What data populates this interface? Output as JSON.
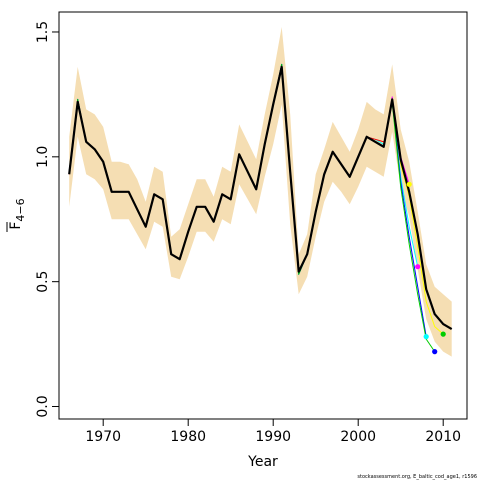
{
  "chart_data": {
    "type": "line",
    "xlabel": "Year",
    "ylabel": {
      "base": "F",
      "subscript": "4−6"
    },
    "xlim": [
      1964.8,
      2012.8
    ],
    "ylim": [
      -0.05,
      1.58
    ],
    "x_ticks": [
      1970,
      1980,
      1990,
      2000,
      2010
    ],
    "x_tick_labels": [
      "1970",
      "1980",
      "1990",
      "2000",
      "2010"
    ],
    "y_ticks": [
      0.0,
      0.5,
      1.0,
      1.5
    ],
    "y_tick_labels": [
      "0.0",
      "0.5",
      "1.0",
      "1.5"
    ],
    "footer": "stockassessment.org, E_baltic_cod_age1, r1596",
    "colors": {
      "band": "#f5deb3",
      "main_line": "#000000",
      "retro": [
        "#ffff00",
        "#ff00ff",
        "#00ffff",
        "#0000ff",
        "#00cc00",
        "#ff0000"
      ]
    },
    "band": {
      "x": [
        1966,
        1967,
        1968,
        1969,
        1970,
        1971,
        1972,
        1973,
        1974,
        1975,
        1976,
        1977,
        1978,
        1979,
        1980,
        1981,
        1982,
        1983,
        1984,
        1985,
        1986,
        1987,
        1988,
        1989,
        1990,
        1991,
        1992,
        1993,
        1994,
        1995,
        1996,
        1997,
        1998,
        1999,
        2000,
        2001,
        2002,
        2003,
        2004,
        2005,
        2006,
        2007,
        2008,
        2009,
        2010,
        2011
      ],
      "lower": [
        0.8,
        1.08,
        0.93,
        0.91,
        0.87,
        0.75,
        0.75,
        0.75,
        0.69,
        0.63,
        0.74,
        0.72,
        0.52,
        0.51,
        0.6,
        0.7,
        0.7,
        0.66,
        0.75,
        0.73,
        0.89,
        0.83,
        0.77,
        0.92,
        1.05,
        1.21,
        0.73,
        0.45,
        0.52,
        0.68,
        0.82,
        0.9,
        0.86,
        0.81,
        0.88,
        0.96,
        0.94,
        0.92,
        1.1,
        0.88,
        0.76,
        0.55,
        0.35,
        0.26,
        0.22,
        0.2
      ],
      "upper": [
        1.08,
        1.36,
        1.19,
        1.17,
        1.12,
        0.98,
        0.98,
        0.97,
        0.91,
        0.82,
        0.96,
        0.94,
        0.68,
        0.71,
        0.81,
        0.91,
        0.91,
        0.84,
        0.96,
        0.94,
        1.13,
        1.06,
        0.99,
        1.17,
        1.33,
        1.52,
        1.17,
        0.61,
        0.69,
        0.93,
        1.03,
        1.14,
        1.08,
        1.02,
        1.11,
        1.22,
        1.19,
        1.17,
        1.37,
        1.11,
        0.98,
        0.78,
        0.57,
        0.48,
        0.45,
        0.42
      ]
    },
    "series": [
      {
        "x": [
          1966,
          1967,
          1968,
          1969,
          1970,
          1971,
          1972,
          1973,
          1974,
          1975,
          1976,
          1977,
          1978,
          1979,
          1980,
          1981,
          1982,
          1983,
          1984,
          1985,
          1986,
          1987,
          1988,
          1989,
          1990,
          1991,
          1992,
          1993,
          1994,
          1995,
          1996,
          1997,
          1998,
          1999,
          2000,
          2001,
          2002,
          2003,
          2004,
          2005,
          2006,
          2007,
          2008,
          2009,
          2010,
          2011
        ],
        "values": [
          0.93,
          1.22,
          1.06,
          1.03,
          0.98,
          0.86,
          0.86,
          0.86,
          0.79,
          0.72,
          0.85,
          0.83,
          0.61,
          0.59,
          0.7,
          0.8,
          0.8,
          0.74,
          0.85,
          0.83,
          1.01,
          0.94,
          0.87,
          1.05,
          1.21,
          1.36,
          0.94,
          0.54,
          0.61,
          0.78,
          0.93,
          1.02,
          0.97,
          0.92,
          1.0,
          1.08,
          1.06,
          1.04,
          1.23,
          0.99,
          0.86,
          0.69,
          0.47,
          0.37,
          0.33,
          0.31
        ]
      },
      {
        "x": [
          1966,
          1967,
          1968,
          1969,
          1970,
          1971,
          1972,
          1973,
          1974,
          1975,
          1976,
          1977,
          1978,
          1979,
          1980,
          1981,
          1982,
          1983,
          1984,
          1985,
          1986,
          1987,
          1988,
          1989,
          1990,
          1991,
          1992,
          1993,
          1994,
          1995,
          1996,
          1997,
          1998,
          1999,
          2000,
          2001,
          2002,
          2003,
          2004,
          2005,
          2006,
          2007,
          2008,
          2009,
          2010
        ],
        "values": [
          0.94,
          1.22,
          1.06,
          1.03,
          0.98,
          0.86,
          0.86,
          0.86,
          0.79,
          0.72,
          0.85,
          0.83,
          0.61,
          0.59,
          0.7,
          0.8,
          0.8,
          0.74,
          0.85,
          0.83,
          1.01,
          0.94,
          0.87,
          1.05,
          1.21,
          1.36,
          0.94,
          0.53,
          0.61,
          0.78,
          0.93,
          1.02,
          0.97,
          0.92,
          1.0,
          1.08,
          1.06,
          1.04,
          1.23,
          0.97,
          0.84,
          0.64,
          0.42,
          0.32,
          0.29
        ]
      },
      {
        "x": [
          1966,
          1967,
          1968,
          1969,
          1970,
          1971,
          1972,
          1973,
          1974,
          1975,
          1976,
          1977,
          1978,
          1979,
          1980,
          1981,
          1982,
          1983,
          1984,
          1985,
          1986,
          1987,
          1988,
          1989,
          1990,
          1991,
          1992,
          1993,
          1994,
          1995,
          1996,
          1997,
          1998,
          1999,
          2000,
          2001,
          2002,
          2003,
          2004,
          2005,
          2006
        ],
        "values": [
          0.94,
          1.23,
          1.06,
          1.03,
          0.98,
          0.86,
          0.86,
          0.86,
          0.79,
          0.72,
          0.85,
          0.83,
          0.61,
          0.59,
          0.7,
          0.8,
          0.8,
          0.74,
          0.85,
          0.83,
          1.01,
          0.94,
          0.87,
          1.05,
          1.21,
          1.37,
          0.94,
          0.53,
          0.61,
          0.78,
          0.93,
          1.02,
          0.97,
          0.92,
          1.0,
          1.08,
          1.06,
          1.04,
          1.24,
          1.0,
          0.89
        ]
      },
      {
        "x": [
          1966,
          1967,
          1968,
          1969,
          1970,
          1971,
          1972,
          1973,
          1974,
          1975,
          1976,
          1977,
          1978,
          1979,
          1980,
          1981,
          1982,
          1983,
          1984,
          1985,
          1986,
          1987,
          1988,
          1989,
          1990,
          1991,
          1992,
          1993,
          1994,
          1995,
          1996,
          1997,
          1998,
          1999,
          2000,
          2001,
          2002,
          2003,
          2004,
          2005,
          2006,
          2007
        ],
        "values": [
          0.94,
          1.23,
          1.06,
          1.03,
          0.98,
          0.86,
          0.86,
          0.86,
          0.79,
          0.72,
          0.85,
          0.83,
          0.61,
          0.59,
          0.7,
          0.8,
          0.8,
          0.74,
          0.85,
          0.83,
          1.01,
          0.94,
          0.87,
          1.05,
          1.21,
          1.37,
          0.94,
          0.53,
          0.61,
          0.78,
          0.93,
          1.02,
          0.97,
          0.92,
          1.0,
          1.08,
          1.07,
          1.05,
          1.22,
          0.92,
          0.72,
          0.56
        ]
      },
      {
        "x": [
          1966,
          1967,
          1968,
          1969,
          1970,
          1971,
          1972,
          1973,
          1974,
          1975,
          1976,
          1977,
          1978,
          1979,
          1980,
          1981,
          1982,
          1983,
          1984,
          1985,
          1986,
          1987,
          1988,
          1989,
          1990,
          1991,
          1992,
          1993,
          1994,
          1995,
          1996,
          1997,
          1998,
          1999,
          2000,
          2001,
          2002,
          2003,
          2004,
          2005,
          2006,
          2007,
          2008
        ],
        "values": [
          0.94,
          1.23,
          1.06,
          1.03,
          0.98,
          0.86,
          0.86,
          0.86,
          0.79,
          0.72,
          0.85,
          0.83,
          0.61,
          0.59,
          0.7,
          0.8,
          0.8,
          0.74,
          0.85,
          0.83,
          1.01,
          0.94,
          0.87,
          1.05,
          1.21,
          1.37,
          0.94,
          0.53,
          0.61,
          0.78,
          0.93,
          1.02,
          0.97,
          0.92,
          1.0,
          1.08,
          1.06,
          1.04,
          1.23,
          0.9,
          0.68,
          0.48,
          0.28
        ]
      },
      {
        "x": [
          1966,
          1967,
          1968,
          1969,
          1970,
          1971,
          1972,
          1973,
          1974,
          1975,
          1976,
          1977,
          1978,
          1979,
          1980,
          1981,
          1982,
          1983,
          1984,
          1985,
          1986,
          1987,
          1988,
          1989,
          1990,
          1991,
          1992,
          1993,
          1994,
          1995,
          1996,
          1997,
          1998,
          1999,
          2000,
          2001,
          2002,
          2003,
          2004,
          2005,
          2006,
          2007,
          2008,
          2009
        ],
        "values": [
          0.94,
          1.23,
          1.06,
          1.03,
          0.98,
          0.86,
          0.86,
          0.86,
          0.79,
          0.72,
          0.85,
          0.83,
          0.61,
          0.59,
          0.7,
          0.8,
          0.8,
          0.74,
          0.85,
          0.83,
          1.01,
          0.94,
          0.87,
          1.05,
          1.21,
          1.37,
          0.94,
          0.53,
          0.61,
          0.78,
          0.93,
          1.02,
          0.97,
          0.92,
          1.0,
          1.08,
          1.06,
          1.04,
          1.22,
          0.88,
          0.65,
          0.45,
          0.27,
          0.22
        ]
      },
      {
        "x": [
          1966,
          1967,
          1968,
          1969,
          1970,
          1971,
          1972,
          1973,
          1974,
          1975,
          1976,
          1977,
          1978,
          1979,
          1980,
          1981,
          1982,
          1983,
          1984,
          1985,
          1986,
          1987,
          1988,
          1989,
          1990,
          1991,
          1992,
          1993,
          1994,
          1995,
          1996,
          1997,
          1998,
          1999,
          2000,
          2001,
          2002,
          2003
        ],
        "values": [
          0.93,
          1.22,
          1.06,
          1.03,
          0.98,
          0.86,
          0.86,
          0.86,
          0.79,
          0.72,
          0.85,
          0.83,
          0.61,
          0.59,
          0.7,
          0.8,
          0.8,
          0.74,
          0.85,
          0.83,
          1.01,
          0.94,
          0.87,
          1.05,
          1.21,
          1.36,
          0.94,
          0.54,
          0.61,
          0.78,
          0.93,
          1.02,
          0.97,
          0.92,
          1.0,
          1.08,
          1.07,
          1.06
        ]
      }
    ],
    "end_points": [
      {
        "x": 2006,
        "y": 0.89
      },
      {
        "x": 2007,
        "y": 0.56
      },
      {
        "x": 2008,
        "y": 0.28
      },
      {
        "x": 2009,
        "y": 0.22
      },
      {
        "x": 2010,
        "y": 0.29
      }
    ]
  }
}
